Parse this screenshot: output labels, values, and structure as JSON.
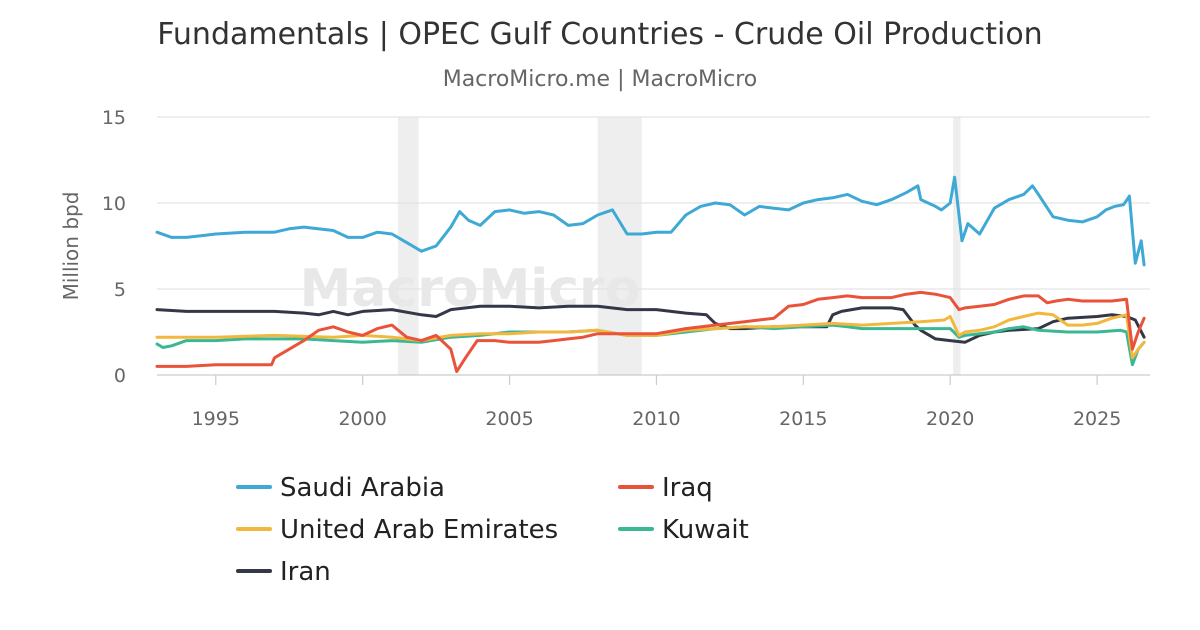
{
  "chart_data": {
    "type": "line",
    "title": "Fundamentals | OPEC Gulf Countries - Crude Oil Production",
    "subtitle": "MacroMicro.me | MacroMicro",
    "ylabel": "Million bpd",
    "xlabel": "",
    "xlim": [
      1993.0,
      2026.8
    ],
    "ylim": [
      0,
      15
    ],
    "x_ticks": [
      1995,
      2000,
      2005,
      2010,
      2015,
      2020,
      2025
    ],
    "y_ticks": [
      0,
      5,
      10,
      15
    ],
    "grid": true,
    "legend_position": "bottom",
    "watermark": "MacroMicro",
    "recession_bands": [
      [
        2001.2,
        2001.9
      ],
      [
        2008.0,
        2009.5
      ],
      [
        2020.1,
        2020.35
      ]
    ],
    "series": [
      {
        "name": "Saudi Arabia",
        "color": "#3fa9d6",
        "x": [
          1993.0,
          1993.5,
          1994.0,
          1994.5,
          1995.0,
          1996.0,
          1997.0,
          1997.5,
          1998.0,
          1999.0,
          1999.5,
          2000.0,
          2000.5,
          2001.0,
          2001.5,
          2002.0,
          2002.5,
          2003.0,
          2003.3,
          2003.6,
          2004.0,
          2004.5,
          2005.0,
          2005.5,
          2006.0,
          2006.5,
          2007.0,
          2007.5,
          2008.0,
          2008.5,
          2009.0,
          2009.5,
          2010.0,
          2010.5,
          2011.0,
          2011.5,
          2012.0,
          2012.5,
          2013.0,
          2013.5,
          2014.0,
          2014.5,
          2015.0,
          2015.5,
          2016.0,
          2016.5,
          2017.0,
          2017.5,
          2018.0,
          2018.5,
          2018.9,
          2019.0,
          2019.5,
          2019.7,
          2020.0,
          2020.15,
          2020.4,
          2020.6,
          2021.0,
          2021.5,
          2022.0,
          2022.5,
          2022.8,
          2023.0,
          2023.5,
          2024.0,
          2024.5,
          2025.0,
          2025.3,
          2025.6,
          2025.9,
          2026.1,
          2026.3,
          2026.5,
          2026.6
        ],
        "values": [
          8.3,
          8.0,
          8.0,
          8.1,
          8.2,
          8.3,
          8.3,
          8.5,
          8.6,
          8.4,
          8.0,
          8.0,
          8.3,
          8.2,
          7.7,
          7.2,
          7.5,
          8.6,
          9.5,
          9.0,
          8.7,
          9.5,
          9.6,
          9.4,
          9.5,
          9.3,
          8.7,
          8.8,
          9.3,
          9.6,
          8.2,
          8.2,
          8.3,
          8.3,
          9.3,
          9.8,
          10.0,
          9.9,
          9.3,
          9.8,
          9.7,
          9.6,
          10.0,
          10.2,
          10.3,
          10.5,
          10.1,
          9.9,
          10.2,
          10.6,
          11.0,
          10.2,
          9.8,
          9.6,
          10.0,
          11.5,
          7.8,
          8.8,
          8.2,
          9.7,
          10.2,
          10.5,
          11.0,
          10.5,
          9.2,
          9.0,
          8.9,
          9.2,
          9.6,
          9.8,
          9.9,
          10.4,
          6.5,
          7.8,
          6.4
        ]
      },
      {
        "name": "Iraq",
        "color": "#e8533a",
        "x": [
          1993.0,
          1994.0,
          1995.0,
          1996.0,
          1996.9,
          1997.0,
          1997.5,
          1998.0,
          1998.5,
          1999.0,
          1999.5,
          2000.0,
          2000.5,
          2001.0,
          2001.5,
          2002.0,
          2002.5,
          2003.0,
          2003.2,
          2003.5,
          2003.9,
          2004.5,
          2005.0,
          2005.5,
          2006.0,
          2006.5,
          2007.0,
          2007.5,
          2008.0,
          2009.0,
          2010.0,
          2011.0,
          2012.0,
          2013.0,
          2014.0,
          2014.5,
          2015.0,
          2015.5,
          2016.0,
          2016.5,
          2017.0,
          2017.5,
          2018.0,
          2018.5,
          2019.0,
          2019.5,
          2020.0,
          2020.3,
          2020.5,
          2021.0,
          2021.5,
          2022.0,
          2022.5,
          2023.0,
          2023.3,
          2023.6,
          2024.0,
          2024.5,
          2025.0,
          2025.5,
          2026.0,
          2026.2,
          2026.4,
          2026.6
        ],
        "values": [
          0.5,
          0.5,
          0.6,
          0.6,
          0.6,
          1.0,
          1.5,
          2.0,
          2.6,
          2.8,
          2.5,
          2.3,
          2.7,
          2.9,
          2.2,
          2.0,
          2.3,
          1.5,
          0.2,
          1.0,
          2.0,
          2.0,
          1.9,
          1.9,
          1.9,
          2.0,
          2.1,
          2.2,
          2.4,
          2.4,
          2.4,
          2.7,
          2.9,
          3.1,
          3.3,
          4.0,
          4.1,
          4.4,
          4.5,
          4.6,
          4.5,
          4.5,
          4.5,
          4.7,
          4.8,
          4.7,
          4.5,
          3.8,
          3.9,
          4.0,
          4.1,
          4.4,
          4.6,
          4.6,
          4.2,
          4.3,
          4.4,
          4.3,
          4.3,
          4.3,
          4.4,
          1.5,
          2.5,
          3.3
        ]
      },
      {
        "name": "United Arab Emirates",
        "color": "#f2b83d",
        "x": [
          1993.0,
          1995.0,
          1997.0,
          1999.0,
          2000.0,
          2001.0,
          2002.0,
          2003.0,
          2004.0,
          2005.0,
          2006.0,
          2007.0,
          2008.0,
          2009.0,
          2010.0,
          2011.0,
          2012.0,
          2013.0,
          2014.0,
          2015.0,
          2016.0,
          2017.0,
          2018.0,
          2019.0,
          2019.8,
          2020.0,
          2020.3,
          2020.5,
          2021.0,
          2021.5,
          2022.0,
          2022.5,
          2023.0,
          2023.5,
          2024.0,
          2024.5,
          2025.0,
          2025.5,
          2026.0,
          2026.2,
          2026.4,
          2026.6
        ],
        "values": [
          2.2,
          2.2,
          2.3,
          2.2,
          2.3,
          2.2,
          2.0,
          2.3,
          2.4,
          2.4,
          2.5,
          2.5,
          2.6,
          2.3,
          2.3,
          2.6,
          2.7,
          2.8,
          2.8,
          2.9,
          3.0,
          2.9,
          3.0,
          3.1,
          3.2,
          3.4,
          2.3,
          2.5,
          2.6,
          2.8,
          3.2,
          3.4,
          3.6,
          3.5,
          2.9,
          2.9,
          3.0,
          3.3,
          3.5,
          1.0,
          1.5,
          1.9
        ]
      },
      {
        "name": "Kuwait",
        "color": "#3bb794",
        "x": [
          1993.0,
          1993.2,
          1993.5,
          1994.0,
          1995.0,
          1996.0,
          1997.0,
          1998.0,
          1999.0,
          2000.0,
          2001.0,
          2002.0,
          2003.0,
          2004.0,
          2005.0,
          2006.0,
          2007.0,
          2008.0,
          2009.0,
          2010.0,
          2011.0,
          2012.0,
          2013.0,
          2014.0,
          2015.0,
          2016.0,
          2016.5,
          2017.0,
          2018.0,
          2019.0,
          2020.0,
          2020.3,
          2020.5,
          2021.0,
          2021.5,
          2022.0,
          2022.5,
          2023.0,
          2024.0,
          2025.0,
          2025.8,
          2026.0,
          2026.2,
          2026.4,
          2026.6
        ],
        "values": [
          1.8,
          1.6,
          1.7,
          2.0,
          2.0,
          2.1,
          2.1,
          2.1,
          2.0,
          1.9,
          2.0,
          1.9,
          2.2,
          2.3,
          2.5,
          2.5,
          2.5,
          2.6,
          2.3,
          2.3,
          2.5,
          2.7,
          2.8,
          2.7,
          2.8,
          2.9,
          2.8,
          2.7,
          2.7,
          2.7,
          2.7,
          2.2,
          2.3,
          2.4,
          2.5,
          2.7,
          2.8,
          2.6,
          2.5,
          2.5,
          2.6,
          2.5,
          0.6,
          1.5,
          1.9
        ]
      },
      {
        "name": "Iran",
        "color": "#343746",
        "x": [
          1993.0,
          1994.0,
          1995.0,
          1996.0,
          1997.0,
          1998.0,
          1998.5,
          1999.0,
          1999.5,
          2000.0,
          2001.0,
          2002.0,
          2002.5,
          2003.0,
          2004.0,
          2005.0,
          2006.0,
          2007.0,
          2008.0,
          2009.0,
          2010.0,
          2011.0,
          2011.7,
          2012.0,
          2012.5,
          2013.0,
          2014.0,
          2015.0,
          2015.8,
          2016.0,
          2016.3,
          2017.0,
          2018.0,
          2018.4,
          2018.8,
          2019.0,
          2019.5,
          2020.0,
          2020.5,
          2021.0,
          2021.5,
          2022.0,
          2023.0,
          2023.5,
          2024.0,
          2025.0,
          2025.5,
          2026.0,
          2026.3,
          2026.6
        ],
        "values": [
          3.8,
          3.7,
          3.7,
          3.7,
          3.7,
          3.6,
          3.5,
          3.7,
          3.5,
          3.7,
          3.8,
          3.5,
          3.4,
          3.8,
          4.0,
          4.0,
          3.9,
          4.0,
          4.0,
          3.8,
          3.8,
          3.6,
          3.5,
          3.0,
          2.7,
          2.7,
          2.8,
          2.8,
          2.8,
          3.5,
          3.7,
          3.9,
          3.9,
          3.8,
          2.9,
          2.6,
          2.1,
          2.0,
          1.9,
          2.3,
          2.5,
          2.6,
          2.7,
          3.1,
          3.3,
          3.4,
          3.5,
          3.4,
          3.2,
          2.2
        ]
      }
    ]
  }
}
